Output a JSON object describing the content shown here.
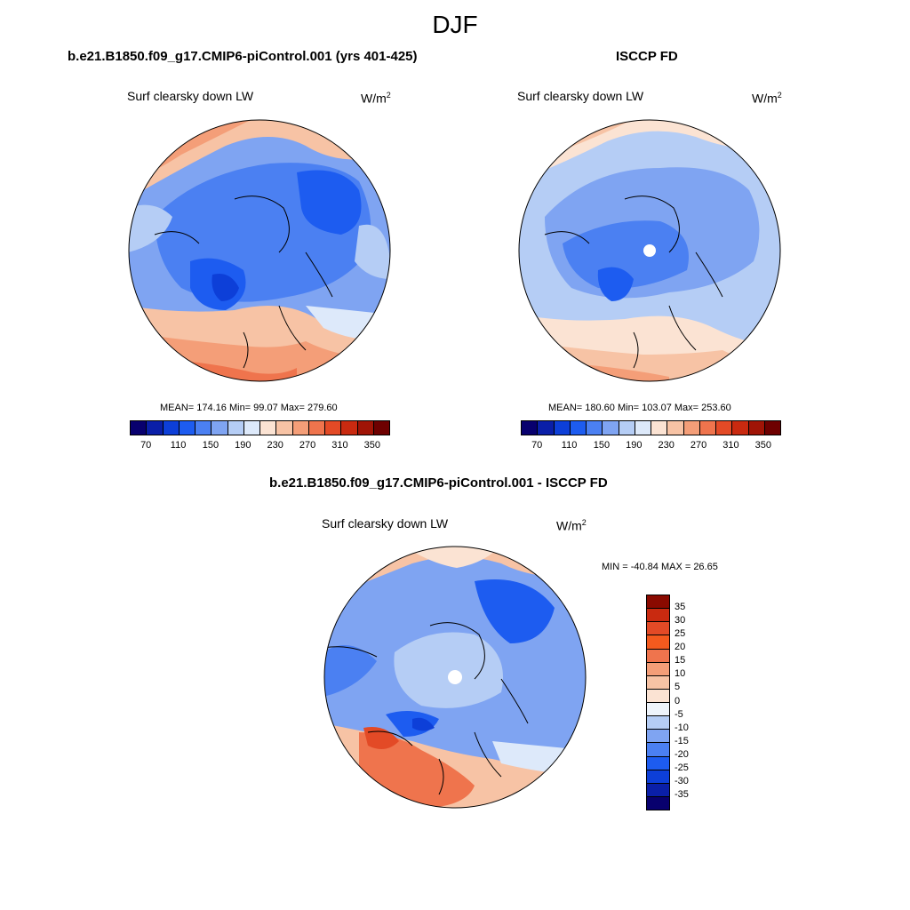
{
  "figure": {
    "title": "DJF"
  },
  "panels": [
    {
      "title": "b.e21.B1850.f09_g17.CMIP6-piControl.001 (yrs 401-425)",
      "variable": "Surf clearsky down LW",
      "units_base": "W/m",
      "units_exp": "2",
      "stats": "MEAN= 174.16  Min=  99.07  Max= 279.60"
    },
    {
      "title": "ISCCP FD",
      "variable": "Surf clearsky down LW",
      "units_base": "W/m",
      "units_exp": "2",
      "stats": "MEAN= 180.60  Min= 103.07  Max= 253.60"
    },
    {
      "title": "b.e21.B1850.f09_g17.CMIP6-piControl.001 - ISCCP FD",
      "variable": "Surf clearsky down LW",
      "units_base": "W/m",
      "units_exp": "2",
      "stats": "MIN = -40.84 MAX =  26.65"
    }
  ],
  "colorbar_abs": {
    "colors": [
      "#08006e",
      "#0a1fa8",
      "#0d3fd8",
      "#1d5cf0",
      "#4b80f2",
      "#7fa4f2",
      "#b5cdf5",
      "#dde9fa",
      "#fbe3d3",
      "#f7c3a5",
      "#f49e78",
      "#ef744d",
      "#e34a26",
      "#c92a10",
      "#a01406",
      "#6e0000"
    ],
    "tick_labels": [
      "70",
      "110",
      "150",
      "190",
      "230",
      "270",
      "310",
      "350"
    ]
  },
  "colorbar_diff": {
    "colors": [
      "#08006e",
      "#0a1fa8",
      "#0d3fd8",
      "#1d5cf0",
      "#4b80f2",
      "#7fa4f2",
      "#b5cdf5",
      "#eef4fb",
      "#fbe3d3",
      "#f7c3a5",
      "#f49e78",
      "#ef744d",
      "#f45a1e",
      "#e34a26",
      "#c92a10",
      "#8a0a00"
    ],
    "tick_labels": [
      "35",
      "30",
      "25",
      "20",
      "15",
      "10",
      "5",
      "0",
      "-5",
      "-10",
      "-15",
      "-20",
      "-25",
      "-30",
      "-35"
    ]
  }
}
